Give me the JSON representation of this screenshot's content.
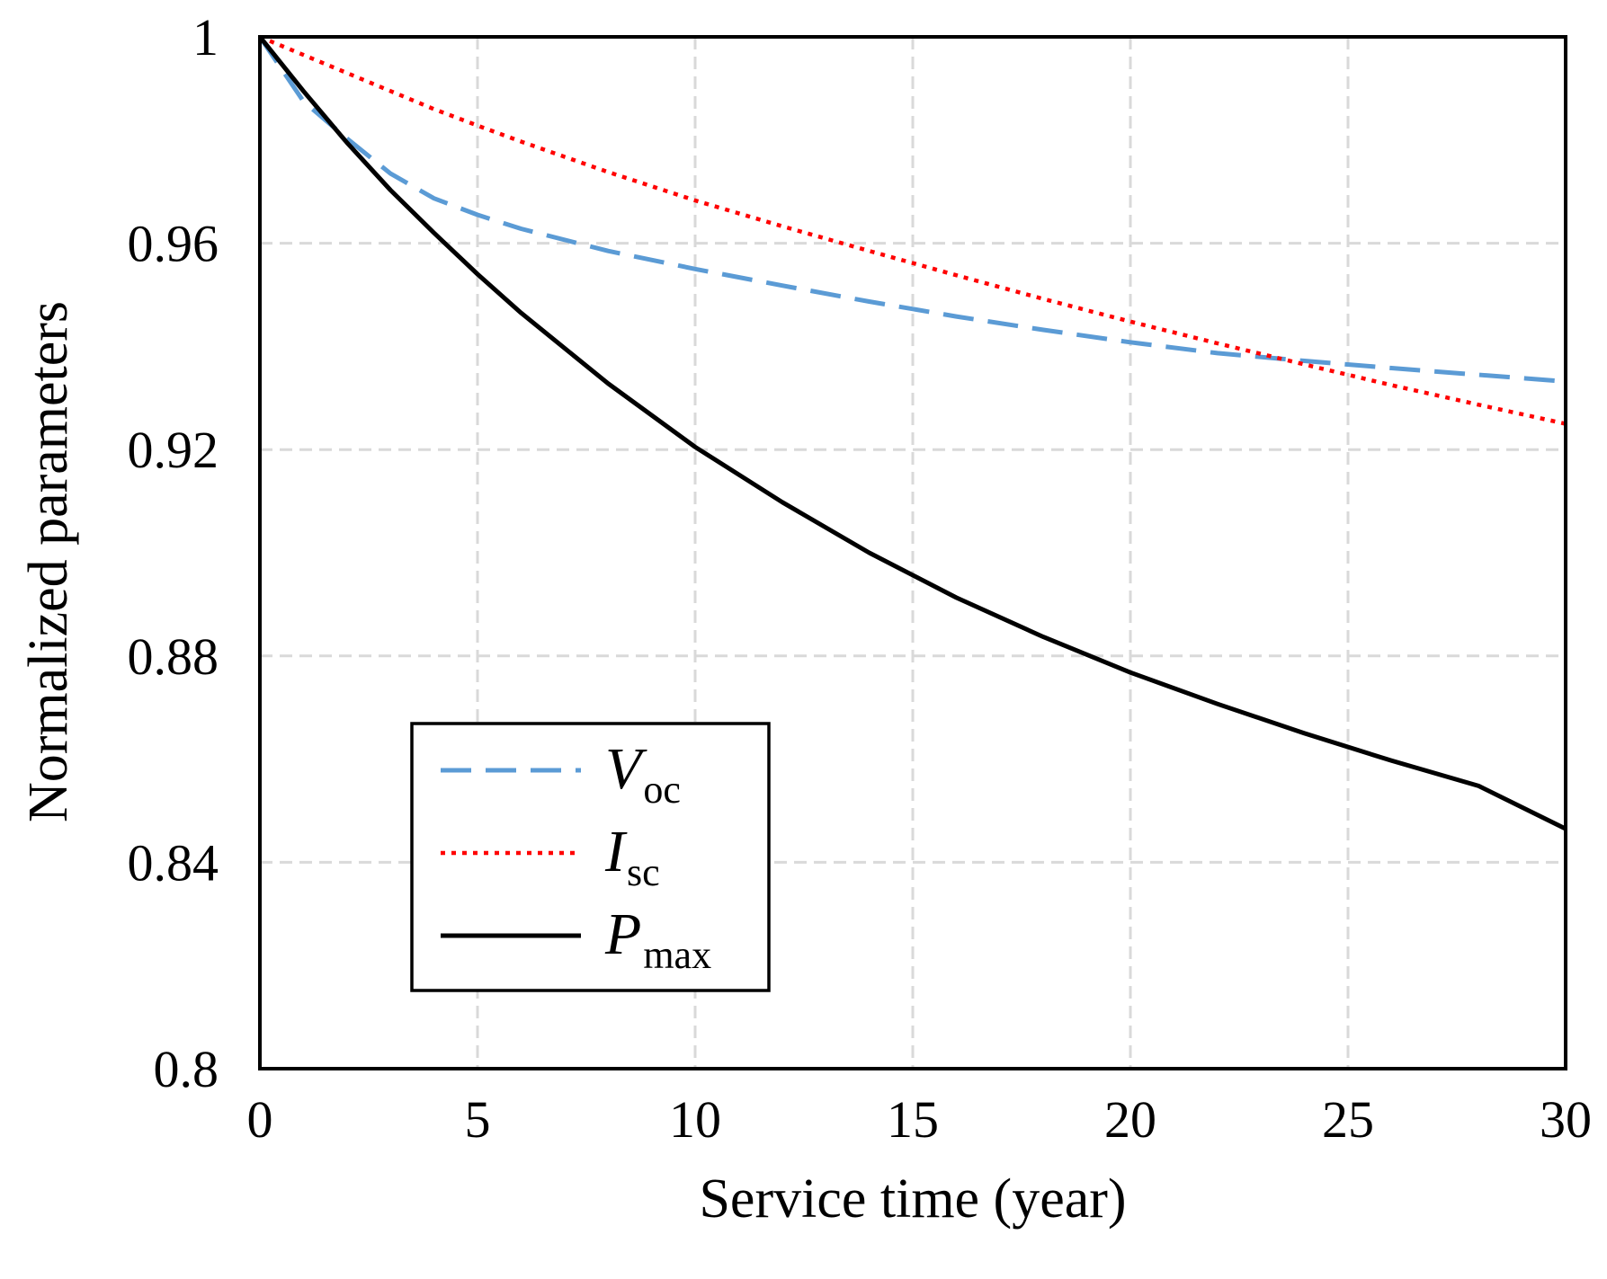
{
  "chart_data": {
    "type": "line",
    "title": "",
    "xlabel": "Service time (year)",
    "ylabel": "Normalized parameters",
    "xlim": [
      0,
      30
    ],
    "ylim": [
      0.8,
      1
    ],
    "xticks": [
      "0",
      "5",
      "10",
      "15",
      "20",
      "25",
      "30"
    ],
    "yticks": [
      "0.8",
      "0.84",
      "0.88",
      "0.92",
      "0.96",
      "1"
    ],
    "grid": true,
    "legend_position": "bottom-left",
    "x": [
      0,
      1,
      2,
      3,
      4,
      5,
      6,
      8,
      10,
      12,
      14,
      16,
      18,
      20,
      22,
      24,
      26,
      28,
      30
    ],
    "series": [
      {
        "name": "Voc",
        "main": "V",
        "sub": "oc",
        "color": "#5b9bd5",
        "style": "dashed",
        "values": [
          1.0,
          0.9875,
          0.9803,
          0.9735,
          0.9687,
          0.9655,
          0.9628,
          0.9585,
          0.955,
          0.9518,
          0.9487,
          0.9458,
          0.9432,
          0.9408,
          0.9387,
          0.9372,
          0.9358,
          0.9345,
          0.9332
        ]
      },
      {
        "name": "Isc",
        "main": "I",
        "sub": "sc",
        "color": "#ff0000",
        "style": "dotted",
        "values": [
          1.0,
          0.9965,
          0.993,
          0.9895,
          0.986,
          0.9828,
          0.9797,
          0.9738,
          0.9683,
          0.9633,
          0.9585,
          0.9538,
          0.9492,
          0.9448,
          0.9406,
          0.9365,
          0.9325,
          0.9287,
          0.925
        ]
      },
      {
        "name": "Pmax",
        "main": "P",
        "sub": "max",
        "color": "#000000",
        "style": "solid",
        "values": [
          1.0,
          0.9895,
          0.9795,
          0.9703,
          0.962,
          0.954,
          0.9465,
          0.9328,
          0.9205,
          0.9098,
          0.9,
          0.8913,
          0.8837,
          0.8768,
          0.8707,
          0.865,
          0.8597,
          0.8548,
          0.8465
        ]
      }
    ]
  }
}
